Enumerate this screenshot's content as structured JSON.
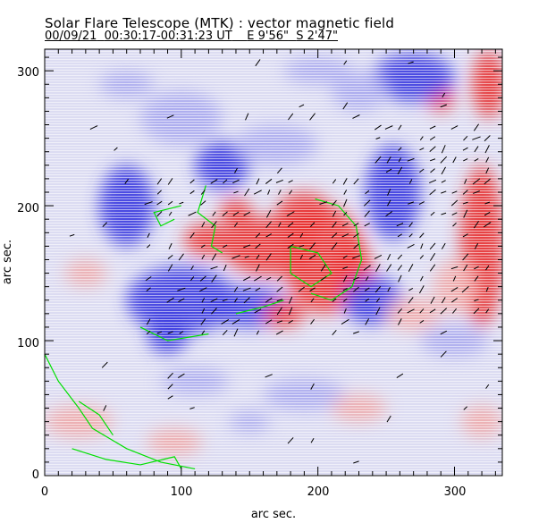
{
  "chart_data": {
    "type": "heatmap",
    "title": "Solar Flare Telescope (MTK) : vector magnetic field",
    "subtitle": {
      "date": "00/09/21",
      "time_range": "00:30:17-00:31:23 UT",
      "position_ew": "E 9'56\"",
      "position_ns": "S 2'47\""
    },
    "xlabel": "arc sec.",
    "ylabel": "arc sec.",
    "xlim": [
      0,
      335
    ],
    "ylim": [
      0,
      316
    ],
    "xticks": [
      0,
      100,
      200,
      300
    ],
    "yticks": [
      0,
      100,
      200,
      300
    ],
    "xtick_labels": [
      "0",
      "100",
      "200",
      "300"
    ],
    "ytick_labels": [
      "0",
      "100",
      "200",
      "300"
    ],
    "colors": {
      "positive": "#e83030",
      "negative": "#3a3ae0",
      "contour": "#00e000",
      "vectors": "#000000"
    },
    "legend": "none"
  }
}
